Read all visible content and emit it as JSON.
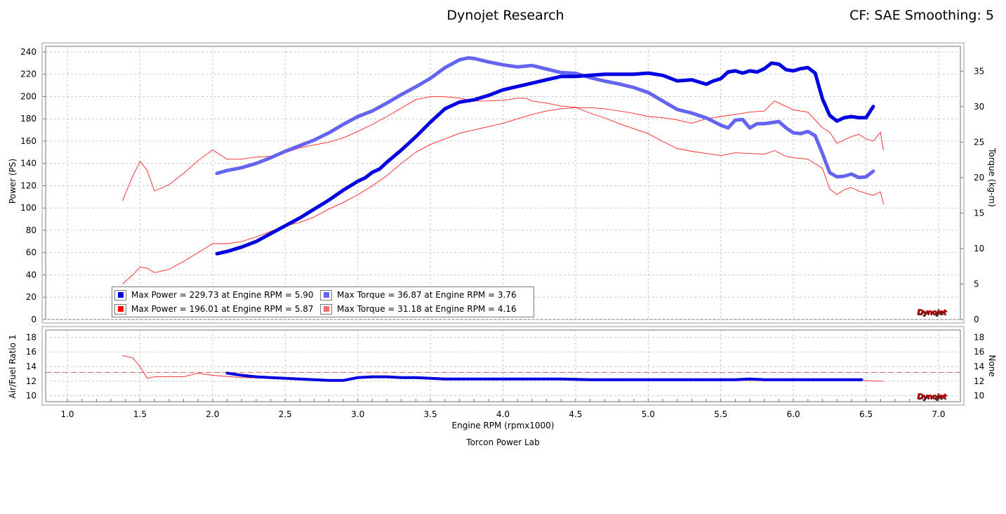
{
  "header": {
    "title": "Dynojet Research",
    "cf_text": "CF: SAE Smoothing: 5"
  },
  "footer": {
    "xlabel": "Engine RPM (rpmx1000)",
    "location": "Torcon Power Lab"
  },
  "axes": {
    "power_label": "Power (PS)",
    "torque_label": "Torque (kg-m)",
    "afr_left_label": "Air/Fuel Ratio 1",
    "afr_right_label": "None",
    "x_ticks": [
      "1.0",
      "1.5",
      "2.0",
      "2.5",
      "3.0",
      "3.5",
      "4.0",
      "4.5",
      "5.0",
      "5.5",
      "6.0",
      "6.5",
      "7.0"
    ],
    "power_ticks": [
      "0",
      "20",
      "40",
      "60",
      "80",
      "100",
      "120",
      "140",
      "160",
      "180",
      "200",
      "220",
      "240"
    ],
    "torque_ticks": [
      "0",
      "5",
      "10",
      "15",
      "20",
      "25",
      "30",
      "35"
    ],
    "afr_ticks": [
      "10",
      "12",
      "14",
      "16",
      "18"
    ]
  },
  "legend": {
    "rows": [
      [
        {
          "text": "Max Power = 229.73 at Engine RPM = 5.90",
          "color": "#0000e0"
        },
        {
          "text": "Max Torque = 36.87 at Engine RPM = 3.76",
          "color": "#6464f0"
        }
      ],
      [
        {
          "text": "Max Power = 196.01 at Engine RPM = 5.87",
          "color": "#ff0000"
        },
        {
          "text": "Max Torque = 31.18 at Engine RPM = 4.16",
          "color": "#f07070"
        }
      ]
    ]
  },
  "logo_text": "Dynojet",
  "colors": {
    "run1_power": "#0000e0",
    "run1_torque": "#6464f0",
    "run2": "#ff2020",
    "afr_target": "#e06060"
  },
  "chart_data": [
    {
      "type": "line",
      "title": "Dynojet Research",
      "xlabel": "Engine RPM (rpmx1000)",
      "ylabel": "Power (PS)",
      "y2label": "Torque (kg-m)",
      "xlim": [
        0.85,
        7.15
      ],
      "ylim": [
        0,
        245
      ],
      "y2lim": [
        0,
        38.5
      ],
      "grid": true,
      "legend_position": "bottom-left",
      "series": [
        {
          "axis": "left",
          "x": [
            2.03,
            2.1,
            2.2,
            2.3,
            2.4,
            2.5,
            2.6,
            2.7,
            2.8,
            2.9,
            3.0,
            3.05,
            3.1,
            3.15,
            3.2,
            3.3,
            3.4,
            3.5,
            3.6,
            3.7,
            3.8,
            3.9,
            4.0,
            4.1,
            4.2,
            4.3,
            4.4,
            4.5,
            4.6,
            4.7,
            4.8,
            4.9,
            5.0,
            5.1,
            5.2,
            5.3,
            5.4,
            5.45,
            5.5,
            5.55,
            5.6,
            5.65,
            5.7,
            5.75,
            5.8,
            5.85,
            5.9,
            5.95,
            6.0,
            6.05,
            6.1,
            6.15,
            6.2,
            6.25,
            6.3,
            6.35,
            6.4,
            6.45,
            6.5,
            6.55
          ],
          "y": [
            59,
            61,
            65,
            70,
            77,
            84,
            91,
            99,
            107,
            116,
            124,
            127,
            132,
            135,
            141,
            152,
            164,
            177,
            189,
            195,
            197,
            201,
            206,
            209,
            212,
            215,
            218,
            218,
            219,
            220,
            220,
            220,
            221,
            219,
            214,
            215,
            211,
            214,
            216,
            222,
            223,
            221,
            223,
            222,
            225,
            230,
            229,
            224,
            223,
            225,
            226,
            221,
            198,
            183,
            178,
            181,
            182,
            181,
            181,
            191
          ]
        },
        {
          "axis": "right",
          "x": [
            2.03,
            2.1,
            2.2,
            2.3,
            2.4,
            2.5,
            2.6,
            2.7,
            2.8,
            2.9,
            3.0,
            3.1,
            3.2,
            3.3,
            3.4,
            3.5,
            3.6,
            3.7,
            3.76,
            3.8,
            3.9,
            4.0,
            4.1,
            4.2,
            4.3,
            4.4,
            4.5,
            4.6,
            4.7,
            4.8,
            4.9,
            5.0,
            5.1,
            5.2,
            5.3,
            5.4,
            5.5,
            5.55,
            5.6,
            5.65,
            5.7,
            5.75,
            5.8,
            5.9,
            5.95,
            6.0,
            6.05,
            6.1,
            6.15,
            6.2,
            6.25,
            6.3,
            6.35,
            6.4,
            6.45,
            6.5,
            6.55
          ],
          "y": [
            20.6,
            21.0,
            21.4,
            22.0,
            22.8,
            23.7,
            24.5,
            25.3,
            26.3,
            27.5,
            28.6,
            29.4,
            30.5,
            31.7,
            32.8,
            34.0,
            35.5,
            36.6,
            36.87,
            36.8,
            36.3,
            35.9,
            35.6,
            35.8,
            35.3,
            34.8,
            34.7,
            34.1,
            33.6,
            33.2,
            32.7,
            32.0,
            30.8,
            29.6,
            29.1,
            28.4,
            27.4,
            27.0,
            28.1,
            28.2,
            27.0,
            27.6,
            27.6,
            27.9,
            27.0,
            26.3,
            26.2,
            26.5,
            25.9,
            23.4,
            20.7,
            20.1,
            20.2,
            20.5,
            20.0,
            20.1,
            20.9
          ]
        },
        {
          "axis": "left",
          "x": [
            1.38,
            1.45,
            1.5,
            1.55,
            1.6,
            1.7,
            1.8,
            1.9,
            2.0,
            2.1,
            2.2,
            2.3,
            2.4,
            2.5,
            2.6,
            2.7,
            2.8,
            2.9,
            3.0,
            3.1,
            3.2,
            3.3,
            3.4,
            3.5,
            3.6,
            3.7,
            3.8,
            3.9,
            4.0,
            4.1,
            4.2,
            4.3,
            4.4,
            4.5,
            4.6,
            4.7,
            4.8,
            4.9,
            5.0,
            5.1,
            5.2,
            5.3,
            5.4,
            5.5,
            5.6,
            5.7,
            5.8,
            5.87,
            5.95,
            6.0,
            6.1,
            6.2,
            6.25,
            6.3,
            6.35,
            6.4,
            6.45,
            6.5,
            6.55,
            6.6,
            6.62
          ],
          "y": [
            32,
            40,
            47,
            46,
            42,
            45,
            52,
            60,
            68,
            68,
            70,
            74,
            79,
            84,
            87,
            92,
            99,
            105,
            112,
            120,
            129,
            140,
            150,
            157,
            162,
            167,
            170,
            173,
            176,
            180,
            184,
            187,
            189,
            190,
            190,
            189,
            187,
            185,
            182,
            181,
            179,
            176,
            180,
            182,
            184,
            186,
            187,
            196,
            191,
            188,
            186,
            172,
            168,
            158,
            161,
            164,
            166,
            162,
            160,
            168,
            152
          ]
        },
        {
          "axis": "right",
          "x": [
            1.38,
            1.45,
            1.5,
            1.55,
            1.6,
            1.7,
            1.8,
            1.9,
            2.0,
            2.1,
            2.2,
            2.3,
            2.4,
            2.5,
            2.6,
            2.7,
            2.8,
            2.9,
            3.0,
            3.1,
            3.2,
            3.3,
            3.4,
            3.5,
            3.6,
            3.7,
            3.8,
            3.9,
            4.0,
            4.1,
            4.16,
            4.2,
            4.3,
            4.4,
            4.5,
            4.6,
            4.7,
            4.8,
            4.9,
            5.0,
            5.1,
            5.2,
            5.3,
            5.4,
            5.5,
            5.6,
            5.7,
            5.8,
            5.87,
            5.95,
            6.0,
            6.1,
            6.2,
            6.25,
            6.3,
            6.35,
            6.4,
            6.45,
            6.5,
            6.55,
            6.6,
            6.62
          ],
          "y": [
            16.8,
            20.2,
            22.3,
            21.0,
            18.1,
            19.0,
            20.6,
            22.4,
            23.9,
            22.6,
            22.6,
            22.9,
            23.0,
            23.5,
            24.2,
            24.6,
            25.0,
            25.6,
            26.5,
            27.5,
            28.6,
            29.8,
            31.0,
            31.4,
            31.4,
            31.2,
            30.8,
            30.8,
            30.9,
            31.2,
            31.18,
            30.8,
            30.5,
            30.1,
            29.9,
            29.1,
            28.4,
            27.6,
            26.9,
            26.2,
            25.1,
            24.1,
            23.7,
            23.4,
            23.1,
            23.5,
            23.4,
            23.3,
            23.8,
            23.0,
            22.8,
            22.6,
            21.3,
            18.4,
            17.6,
            18.3,
            18.6,
            18.1,
            17.8,
            17.5,
            18.0,
            16.3
          ]
        }
      ]
    },
    {
      "type": "line",
      "ylabel": "Air/Fuel Ratio 1",
      "y2label": "None",
      "xlim": [
        0.85,
        7.15
      ],
      "ylim": [
        9.2,
        19.0
      ],
      "target_afr": 13.2,
      "series": [
        {
          "x": [
            2.1,
            2.2,
            2.3,
            2.4,
            2.5,
            2.6,
            2.7,
            2.8,
            2.9,
            3.0,
            3.1,
            3.2,
            3.3,
            3.4,
            3.5,
            3.6,
            3.7,
            3.8,
            3.9,
            4.0,
            4.2,
            4.4,
            4.6,
            4.8,
            5.0,
            5.2,
            5.4,
            5.6,
            5.7,
            5.8,
            6.0,
            6.2,
            6.47
          ],
          "y": [
            13.1,
            12.8,
            12.6,
            12.5,
            12.4,
            12.3,
            12.2,
            12.1,
            12.1,
            12.5,
            12.6,
            12.6,
            12.5,
            12.5,
            12.4,
            12.3,
            12.3,
            12.3,
            12.3,
            12.3,
            12.3,
            12.3,
            12.2,
            12.2,
            12.2,
            12.2,
            12.2,
            12.2,
            12.3,
            12.2,
            12.2,
            12.2,
            12.2
          ]
        },
        {
          "x": [
            1.38,
            1.45,
            1.5,
            1.55,
            1.6,
            1.7,
            1.8,
            1.9,
            2.0,
            2.2,
            2.4,
            2.6,
            2.8,
            3.0,
            3.2,
            3.4,
            3.6,
            3.8,
            4.0,
            4.2,
            4.4,
            4.6,
            4.8,
            5.0,
            5.2,
            5.4,
            5.6,
            5.8,
            6.0,
            6.2,
            6.4,
            6.5,
            6.6,
            6.62
          ],
          "y": [
            15.5,
            15.2,
            14.0,
            12.4,
            12.6,
            12.6,
            12.6,
            13.1,
            12.8,
            12.5,
            12.4,
            12.2,
            12.1,
            12.4,
            12.5,
            12.4,
            12.3,
            12.3,
            12.3,
            12.3,
            12.3,
            12.2,
            12.2,
            12.1,
            12.1,
            12.1,
            12.1,
            12.1,
            12.1,
            12.1,
            12.1,
            12.1,
            12.0,
            12.0
          ]
        }
      ]
    }
  ]
}
